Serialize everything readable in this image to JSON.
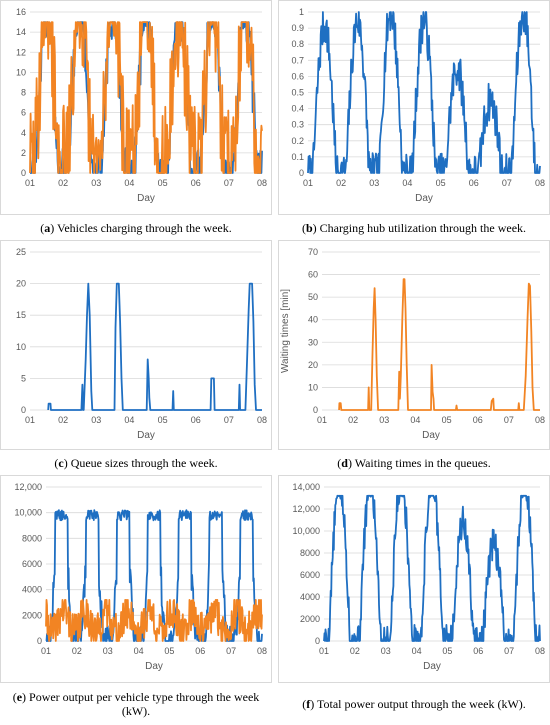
{
  "colors": {
    "blue": "#1f6fc2",
    "orange": "#f28423",
    "grid": "#d9d9d9",
    "text": "#595959"
  },
  "chart_data": [
    {
      "id": "a",
      "type": "line",
      "caption_letter": "a",
      "caption_text": "Vehicles charging through the week.",
      "xlabel": "Day",
      "ylabel": "",
      "x_ticks": [
        "01",
        "02",
        "03",
        "04",
        "05",
        "06",
        "07",
        "08"
      ],
      "y_ticks": [
        "0",
        "2",
        "4",
        "6",
        "8",
        "10",
        "12",
        "14",
        "16"
      ],
      "ylim": [
        0,
        16
      ],
      "series": [
        {
          "color": "blue",
          "kind": "cycle",
          "peak": 15,
          "low": 0,
          "noise": 2.5,
          "seed": 11
        },
        {
          "color": "orange",
          "kind": "cycle",
          "peak": 15,
          "low": 1,
          "noise": 6,
          "seed": 29
        }
      ]
    },
    {
      "id": "b",
      "type": "line",
      "caption_letter": "b",
      "caption_text": "Charging hub utilization through the week.",
      "xlabel": "Day",
      "ylabel": "",
      "x_ticks": [
        "01",
        "02",
        "03",
        "04",
        "05",
        "06",
        "07",
        "08"
      ],
      "y_ticks": [
        "0",
        "0.1",
        "0.2",
        "0.3",
        "0.4",
        "0.5",
        "0.6",
        "0.7",
        "0.8",
        "0.9",
        "1"
      ],
      "ylim": [
        0,
        1
      ],
      "series": [
        {
          "color": "blue",
          "kind": "util",
          "seed": 7
        }
      ]
    },
    {
      "id": "c",
      "type": "line",
      "caption_letter": "c",
      "caption_text": "Queue sizes through the week.",
      "xlabel": "Day",
      "ylabel": "",
      "x_ticks": [
        "01",
        "02",
        "03",
        "04",
        "05",
        "06",
        "07",
        "08"
      ],
      "y_ticks": [
        "0",
        "5",
        "10",
        "15",
        "20",
        "25"
      ],
      "ylim": [
        0,
        25
      ],
      "series": [
        {
          "color": "blue",
          "kind": "spikes",
          "points": [
            [
              1.55,
              0
            ],
            [
              1.56,
              1
            ],
            [
              1.62,
              1
            ],
            [
              1.63,
              0
            ],
            [
              2.55,
              0
            ],
            [
              2.58,
              4
            ],
            [
              2.6,
              0
            ],
            [
              2.62,
              0
            ],
            [
              2.68,
              8
            ],
            [
              2.72,
              15
            ],
            [
              2.76,
              20
            ],
            [
              2.8,
              15
            ],
            [
              2.85,
              3
            ],
            [
              2.88,
              0
            ],
            [
              3.55,
              0
            ],
            [
              3.58,
              13
            ],
            [
              3.62,
              20
            ],
            [
              3.68,
              20
            ],
            [
              3.72,
              14
            ],
            [
              3.76,
              5
            ],
            [
              3.8,
              0
            ],
            [
              4.52,
              0
            ],
            [
              4.55,
              8
            ],
            [
              4.58,
              5
            ],
            [
              4.6,
              2
            ],
            [
              4.63,
              0
            ],
            [
              5.3,
              0
            ],
            [
              5.32,
              3
            ],
            [
              5.34,
              0
            ],
            [
              6.45,
              0
            ],
            [
              6.47,
              5
            ],
            [
              6.55,
              5
            ],
            [
              6.57,
              0
            ],
            [
              7.3,
              0
            ],
            [
              7.32,
              4
            ],
            [
              7.34,
              0
            ],
            [
              7.5,
              0
            ],
            [
              7.55,
              8
            ],
            [
              7.6,
              16
            ],
            [
              7.63,
              20
            ],
            [
              7.7,
              20
            ],
            [
              7.74,
              14
            ],
            [
              7.78,
              4
            ],
            [
              7.82,
              0
            ],
            [
              8,
              0
            ]
          ]
        }
      ]
    },
    {
      "id": "d",
      "type": "line",
      "caption_letter": "d",
      "caption_text": "Waiting times in the queues.",
      "xlabel": "Day",
      "ylabel": "Waiting times [min]",
      "x_ticks": [
        "01",
        "02",
        "03",
        "04",
        "05",
        "06",
        "07",
        "08"
      ],
      "y_ticks": [
        "0",
        "10",
        "20",
        "30",
        "40",
        "50",
        "60",
        "70"
      ],
      "ylim": [
        0,
        70
      ],
      "series": [
        {
          "color": "orange",
          "kind": "spikes",
          "points": [
            [
              1.55,
              0
            ],
            [
              1.56,
              3
            ],
            [
              1.6,
              3
            ],
            [
              1.62,
              0
            ],
            [
              2.48,
              0
            ],
            [
              2.5,
              10
            ],
            [
              2.52,
              0
            ],
            [
              2.58,
              0
            ],
            [
              2.62,
              25
            ],
            [
              2.66,
              45
            ],
            [
              2.69,
              54
            ],
            [
              2.72,
              40
            ],
            [
              2.76,
              15
            ],
            [
              2.8,
              0
            ],
            [
              3.45,
              0
            ],
            [
              3.48,
              17
            ],
            [
              3.5,
              5
            ],
            [
              3.53,
              15
            ],
            [
              3.58,
              40
            ],
            [
              3.62,
              58
            ],
            [
              3.65,
              58
            ],
            [
              3.68,
              45
            ],
            [
              3.72,
              20
            ],
            [
              3.76,
              0
            ],
            [
              4.5,
              0
            ],
            [
              4.52,
              20
            ],
            [
              4.55,
              8
            ],
            [
              4.58,
              5
            ],
            [
              4.6,
              0
            ],
            [
              5.3,
              0
            ],
            [
              5.32,
              2
            ],
            [
              5.34,
              0
            ],
            [
              6.42,
              0
            ],
            [
              6.45,
              4
            ],
            [
              6.5,
              5
            ],
            [
              6.52,
              0
            ],
            [
              7.3,
              0
            ],
            [
              7.32,
              3
            ],
            [
              7.34,
              0
            ],
            [
              7.48,
              0
            ],
            [
              7.54,
              15
            ],
            [
              7.6,
              40
            ],
            [
              7.64,
              56
            ],
            [
              7.68,
              55
            ],
            [
              7.72,
              35
            ],
            [
              7.76,
              10
            ],
            [
              7.8,
              0
            ],
            [
              8,
              0
            ]
          ]
        }
      ]
    },
    {
      "id": "e",
      "type": "line",
      "caption_letter": "e",
      "caption_text": "Power output per vehicle type through the week (kW).",
      "xlabel": "Day",
      "ylabel": "",
      "x_ticks": [
        "01",
        "02",
        "03",
        "04",
        "05",
        "06",
        "07",
        "08"
      ],
      "y_ticks": [
        "0",
        "2000",
        "4000",
        "6000",
        "8000",
        "10,000",
        "12,000"
      ],
      "ylim": [
        0,
        12000
      ],
      "series": [
        {
          "color": "blue",
          "kind": "power",
          "peak": 10200,
          "seed": 13
        },
        {
          "color": "orange",
          "kind": "noisy",
          "base": 1500,
          "amp": 1500,
          "seed": 41
        }
      ]
    },
    {
      "id": "f",
      "type": "line",
      "caption_letter": "f",
      "caption_text": "Total power output through the week (kW).",
      "xlabel": "Day",
      "ylabel": "",
      "x_ticks": [
        "01",
        "02",
        "03",
        "04",
        "05",
        "06",
        "07",
        "08"
      ],
      "y_ticks": [
        "0",
        "2000",
        "4000",
        "6000",
        "8000",
        "10,000",
        "12,000",
        "14,000"
      ],
      "ylim": [
        0,
        14000
      ],
      "series": [
        {
          "color": "blue",
          "kind": "total",
          "peak": 13200,
          "seed": 5
        }
      ]
    }
  ]
}
